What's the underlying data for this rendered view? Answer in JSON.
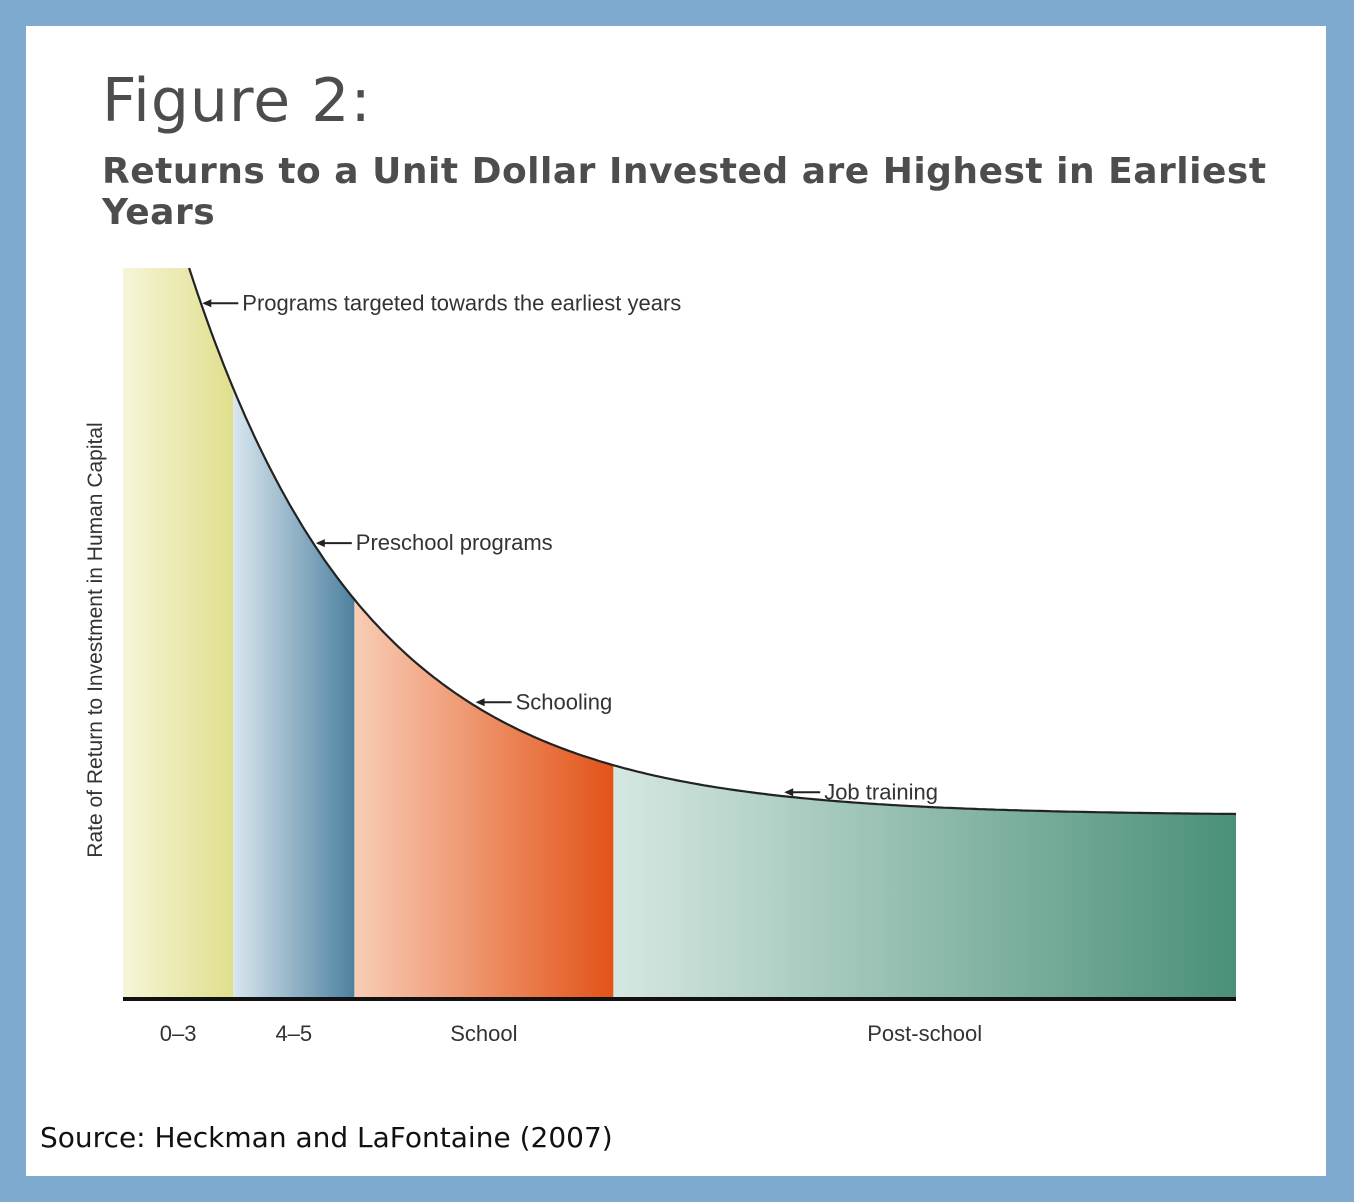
{
  "figure": {
    "title": "Figure 2:",
    "subtitle": "Returns to a Unit Dollar Invested are Highest in Earliest Years",
    "source": "Source: Heckman and LaFontaine (2007)"
  },
  "chart_data": {
    "type": "area",
    "ylabel": "Rate of Return to Investment in Human Capital",
    "categories": [
      "0–3",
      "4–5",
      "School",
      "Post-school"
    ],
    "segments": [
      {
        "name": "0–3",
        "x_start": 0,
        "x_end": 1,
        "color_light": "#f6f5d8",
        "color_dark": "#e0df8c"
      },
      {
        "name": "4–5",
        "x_start": 1,
        "x_end": 2.1,
        "color_light": "#d8e6ef",
        "color_dark": "#4d819f"
      },
      {
        "name": "School",
        "x_start": 2.1,
        "x_end": 4.45,
        "color_light": "#f8cdb6",
        "color_dark": "#e35317"
      },
      {
        "name": "Post-school",
        "x_start": 4.45,
        "x_end": 10.1,
        "color_light": "#d6e7e2",
        "color_dark": "#4a9079"
      }
    ],
    "curve": {
      "x_start": 0.6,
      "x_end": 10.1,
      "y_max": 100,
      "y_min": 25
    },
    "annotations": [
      {
        "text": "Programs targeted towards the earliest years",
        "x": 0.72
      },
      {
        "text": "Preschool programs",
        "x": 1.75
      },
      {
        "text": "Schooling",
        "x": 3.2
      },
      {
        "text": "Job training",
        "x": 6.0
      }
    ],
    "grid": false,
    "legend": "none"
  }
}
